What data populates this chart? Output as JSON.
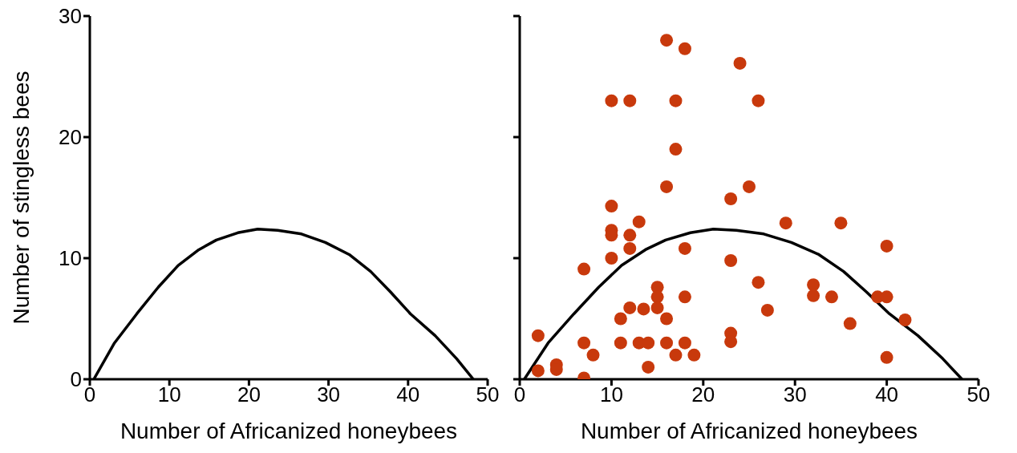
{
  "chart_data": [
    {
      "type": "line",
      "xlabel": "Number of Africanized honeybees",
      "ylabel": "Number of stingless bees",
      "xlim": [
        0,
        50
      ],
      "xticks": [
        0,
        10,
        20,
        30,
        40,
        50
      ],
      "ylim": [
        0,
        30
      ],
      "yticks": [
        0,
        10,
        20,
        30
      ],
      "series": [
        {
          "color": "#000000",
          "x": [
            0.5,
            3.1,
            5.9,
            8.6,
            11.1,
            13.7,
            15.9,
            18.6,
            21.1,
            23.6,
            26.6,
            29.6,
            32.6,
            35.3,
            37.8,
            40.3,
            43.4,
            46.1,
            48.2
          ],
          "values": [
            0,
            3,
            5.4,
            7.6,
            9.4,
            10.7,
            11.5,
            12.1,
            12.4,
            12.3,
            12,
            11.3,
            10.3,
            8.9,
            7.2,
            5.4,
            3.6,
            1.7,
            0
          ]
        }
      ]
    },
    {
      "type": "scatter",
      "xlabel": "Number of Africanized honeybees",
      "xlim": [
        0,
        50
      ],
      "xticks": [
        0,
        10,
        20,
        30,
        40,
        50
      ],
      "ylim": [
        0,
        30
      ],
      "yticks": [
        0,
        10,
        20,
        30
      ],
      "tick_labels": "x",
      "series": [
        {
          "marker": "circle",
          "color": "#c8390c",
          "x": [
            2,
            2,
            4,
            4,
            7,
            7,
            7,
            8,
            10,
            10,
            10,
            10,
            10,
            11,
            11,
            12,
            12,
            12,
            12,
            13,
            13,
            13.5,
            14,
            14,
            15,
            15,
            15,
            16,
            16,
            16,
            16,
            17,
            17,
            17,
            18,
            18,
            18,
            18,
            19,
            23,
            23,
            23,
            23,
            24,
            25,
            26,
            26,
            27,
            29,
            32,
            32,
            34,
            35,
            36,
            39,
            40,
            40,
            40,
            42
          ],
          "values": [
            3.6,
            0.7,
            1.2,
            0.8,
            9.1,
            3,
            0.1,
            2,
            23,
            14.3,
            12.3,
            11.9,
            10,
            5,
            3,
            23,
            11.9,
            10.8,
            5.9,
            13,
            3,
            5.8,
            3,
            1,
            7.6,
            6.8,
            5.9,
            15.9,
            5,
            3,
            28,
            23,
            19,
            2,
            27.3,
            10.8,
            6.8,
            3,
            2,
            3.8,
            3.1,
            9.8,
            14.9,
            26.1,
            15.9,
            23,
            8,
            5.7,
            12.9,
            7.8,
            6.9,
            6.8,
            12.9,
            4.6,
            6.8,
            6.8,
            11,
            1.8,
            4.9
          ]
        },
        {
          "type": "line",
          "color": "#000000",
          "x": [
            0.5,
            3.1,
            5.9,
            8.6,
            11.1,
            13.7,
            15.9,
            18.6,
            21.1,
            23.6,
            26.6,
            29.6,
            32.6,
            35.3,
            37.8,
            40.3,
            43.4,
            46.1,
            48.2
          ],
          "values": [
            0,
            3,
            5.4,
            7.6,
            9.4,
            10.7,
            11.5,
            12.1,
            12.4,
            12.3,
            12,
            11.3,
            10.3,
            8.9,
            7.2,
            5.4,
            3.6,
            1.7,
            0
          ]
        }
      ]
    }
  ]
}
